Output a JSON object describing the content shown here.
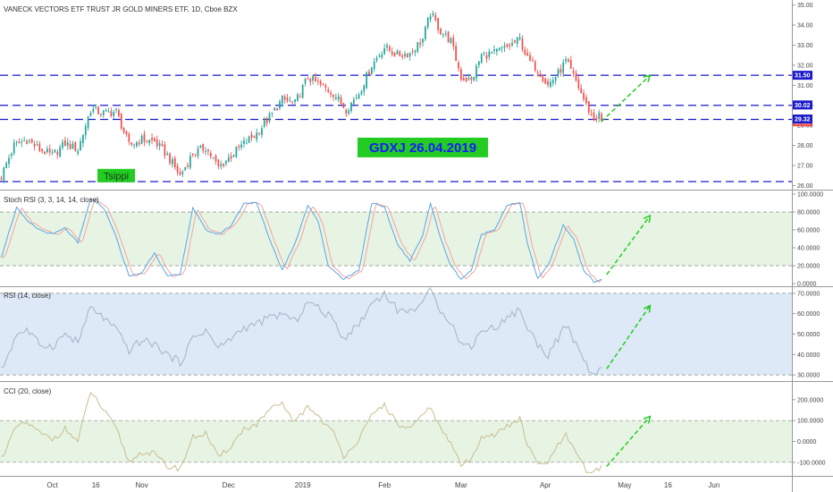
{
  "chart_data": {
    "type": "candlestick",
    "title": "VANECK VECTORS ETF TRUST JR GOLD MINERS ETF, 1D, Cboe BZX",
    "colors": {
      "up": "#26a69a",
      "down": "#ef5350",
      "level_line": "#1a1acc",
      "trend_arrow": "#22cc22",
      "annot_bg": "#22cc22",
      "stoch_k": "#5aa5e6",
      "stoch_d": "#f3a59a",
      "rsi": "#9fb5c8",
      "cci": "#c8bd90",
      "grid_dash": "#888888"
    },
    "time_axis": {
      "labels": [
        {
          "text": "Oct",
          "index": 20
        },
        {
          "text": "16",
          "index": 37
        },
        {
          "text": "Nov",
          "index": 55
        },
        {
          "text": "Dec",
          "index": 89
        },
        {
          "text": "2019",
          "index": 118
        },
        {
          "text": "Feb",
          "index": 150
        },
        {
          "text": "Mar",
          "index": 180
        },
        {
          "text": "Apr",
          "index": 213
        },
        {
          "text": "May",
          "index": 244
        },
        {
          "text": "16",
          "index": 261
        },
        {
          "text": "Jun",
          "index": 279
        }
      ],
      "total_slots": 310
    },
    "price_pane": {
      "y_range": [
        25.8,
        35.25
      ],
      "ticks": [
        "26.00",
        "27.00",
        "28.00",
        "29.00",
        "30.00",
        "31.00",
        "32.00",
        "33.00",
        "34.00",
        "35.00"
      ],
      "horizontal_levels": [
        31.5,
        30.0,
        29.3,
        26.2
      ],
      "price_tags": [
        {
          "text": "31.50",
          "value": 31.5,
          "color": "#1a1acc"
        },
        {
          "text": "30.02",
          "value": 30.02,
          "color": "#1a1acc"
        },
        {
          "text": "29.18",
          "value": 29.18,
          "color": "#ef5350"
        },
        {
          "text": "29.32",
          "value": 29.32,
          "color": "#1a1acc"
        }
      ],
      "anchors": [
        [
          0,
          26.5
        ],
        [
          5,
          28.0
        ],
        [
          10,
          28.3
        ],
        [
          15,
          27.8
        ],
        [
          20,
          27.5
        ],
        [
          25,
          28.1
        ],
        [
          30,
          27.8
        ],
        [
          35,
          29.8
        ],
        [
          40,
          29.6
        ],
        [
          45,
          29.7
        ],
        [
          50,
          28.0
        ],
        [
          55,
          28.3
        ],
        [
          60,
          28.2
        ],
        [
          65,
          27.5
        ],
        [
          70,
          26.5
        ],
        [
          75,
          27.6
        ],
        [
          80,
          27.9
        ],
        [
          85,
          26.9
        ],
        [
          90,
          27.5
        ],
        [
          95,
          28.1
        ],
        [
          100,
          28.6
        ],
        [
          105,
          29.4
        ],
        [
          110,
          30.3
        ],
        [
          115,
          30.1
        ],
        [
          120,
          31.4
        ],
        [
          125,
          31.0
        ],
        [
          130,
          30.6
        ],
        [
          135,
          29.8
        ],
        [
          140,
          30.6
        ],
        [
          145,
          32.0
        ],
        [
          150,
          32.9
        ],
        [
          155,
          32.5
        ],
        [
          160,
          32.6
        ],
        [
          165,
          33.3
        ],
        [
          168,
          34.6
        ],
        [
          172,
          33.7
        ],
        [
          176,
          33.2
        ],
        [
          180,
          31.4
        ],
        [
          184,
          31.2
        ],
        [
          188,
          32.5
        ],
        [
          193,
          32.6
        ],
        [
          198,
          32.9
        ],
        [
          203,
          33.3
        ],
        [
          206,
          32.3
        ],
        [
          210,
          31.8
        ],
        [
          214,
          31.0
        ],
        [
          218,
          31.6
        ],
        [
          221,
          32.2
        ],
        [
          225,
          31.2
        ],
        [
          229,
          30.0
        ],
        [
          232,
          29.3
        ],
        [
          234,
          29.5
        ],
        [
          235,
          29.2
        ]
      ],
      "annotations": [
        {
          "text": "GDXJ 26.04.2019",
          "index": 165,
          "value": 27.9,
          "style": "big"
        },
        {
          "text": "Tsippi",
          "index": 45,
          "value": 26.5,
          "style": "small"
        }
      ],
      "trend_arrow": {
        "from": [
          235,
          29.2
        ],
        "to": [
          254,
          31.5
        ]
      }
    },
    "stoch_pane": {
      "title": "Stoch RSI (3, 3, 14, 14, close)",
      "y_range": [
        -3,
        104
      ],
      "ticks": [
        "0.0000",
        "20.0000",
        "40.0000",
        "60.0000",
        "80.0000",
        "100.0000"
      ],
      "tick_values": [
        0,
        20,
        40,
        60,
        80,
        100
      ],
      "band": [
        20,
        80
      ],
      "anchors": [
        [
          0,
          30
        ],
        [
          6,
          85
        ],
        [
          10,
          70
        ],
        [
          15,
          60
        ],
        [
          20,
          55
        ],
        [
          25,
          62
        ],
        [
          30,
          45
        ],
        [
          35,
          95
        ],
        [
          40,
          85
        ],
        [
          44,
          60
        ],
        [
          50,
          8
        ],
        [
          55,
          12
        ],
        [
          60,
          35
        ],
        [
          65,
          8
        ],
        [
          70,
          10
        ],
        [
          75,
          85
        ],
        [
          80,
          60
        ],
        [
          85,
          55
        ],
        [
          90,
          65
        ],
        [
          95,
          90
        ],
        [
          100,
          90
        ],
        [
          105,
          50
        ],
        [
          110,
          15
        ],
        [
          115,
          45
        ],
        [
          120,
          88
        ],
        [
          124,
          70
        ],
        [
          128,
          20
        ],
        [
          134,
          5
        ],
        [
          140,
          15
        ],
        [
          145,
          90
        ],
        [
          150,
          85
        ],
        [
          155,
          45
        ],
        [
          160,
          25
        ],
        [
          165,
          55
        ],
        [
          168,
          90
        ],
        [
          172,
          50
        ],
        [
          176,
          20
        ],
        [
          180,
          5
        ],
        [
          184,
          15
        ],
        [
          188,
          55
        ],
        [
          193,
          60
        ],
        [
          198,
          88
        ],
        [
          203,
          90
        ],
        [
          206,
          45
        ],
        [
          210,
          5
        ],
        [
          214,
          20
        ],
        [
          220,
          65
        ],
        [
          224,
          50
        ],
        [
          228,
          15
        ],
        [
          232,
          2
        ],
        [
          235,
          5
        ]
      ],
      "arrow": {
        "from": [
          237,
          10
        ],
        "to": [
          254,
          76
        ]
      }
    },
    "rsi_pane": {
      "title": "RSI (14, close)",
      "y_range": [
        27,
        73
      ],
      "ticks": [
        "30.0000",
        "40.0000",
        "50.0000",
        "60.0000",
        "70.0000"
      ],
      "tick_values": [
        30,
        40,
        50,
        60,
        70
      ],
      "band": [
        30,
        70
      ],
      "anchors": [
        [
          0,
          32
        ],
        [
          6,
          50
        ],
        [
          10,
          52
        ],
        [
          15,
          45
        ],
        [
          20,
          44
        ],
        [
          25,
          50
        ],
        [
          30,
          46
        ],
        [
          35,
          63
        ],
        [
          40,
          58
        ],
        [
          45,
          52
        ],
        [
          50,
          42
        ],
        [
          55,
          47
        ],
        [
          60,
          45
        ],
        [
          65,
          40
        ],
        [
          70,
          36
        ],
        [
          75,
          48
        ],
        [
          80,
          52
        ],
        [
          85,
          43
        ],
        [
          90,
          48
        ],
        [
          95,
          53
        ],
        [
          100,
          55
        ],
        [
          105,
          58
        ],
        [
          110,
          60
        ],
        [
          115,
          56
        ],
        [
          120,
          66
        ],
        [
          125,
          62
        ],
        [
          130,
          57
        ],
        [
          134,
          48
        ],
        [
          140,
          55
        ],
        [
          145,
          65
        ],
        [
          150,
          70
        ],
        [
          155,
          62
        ],
        [
          160,
          61
        ],
        [
          165,
          66
        ],
        [
          168,
          71
        ],
        [
          172,
          62
        ],
        [
          176,
          56
        ],
        [
          180,
          45
        ],
        [
          184,
          44
        ],
        [
          188,
          52
        ],
        [
          193,
          53
        ],
        [
          198,
          58
        ],
        [
          203,
          62
        ],
        [
          206,
          53
        ],
        [
          210,
          45
        ],
        [
          214,
          40
        ],
        [
          218,
          48
        ],
        [
          221,
          54
        ],
        [
          225,
          45
        ],
        [
          229,
          35
        ],
        [
          232,
          30
        ],
        [
          235,
          32
        ]
      ],
      "arrow": {
        "from": [
          237,
          33
        ],
        "to": [
          254,
          64
        ]
      }
    },
    "cci_pane": {
      "title": "CCI (20, close)",
      "y_range": [
        -165,
        285
      ],
      "ticks": [
        "-100.0000",
        "0.0000",
        "100.0000",
        "200.0000"
      ],
      "tick_values": [
        -100,
        0,
        100,
        200
      ],
      "band": [
        -100,
        100
      ],
      "anchors": [
        [
          0,
          -80
        ],
        [
          6,
          70
        ],
        [
          10,
          90
        ],
        [
          15,
          40
        ],
        [
          20,
          10
        ],
        [
          25,
          60
        ],
        [
          30,
          0
        ],
        [
          35,
          240
        ],
        [
          40,
          150
        ],
        [
          45,
          60
        ],
        [
          50,
          -100
        ],
        [
          55,
          -50
        ],
        [
          60,
          -60
        ],
        [
          65,
          -120
        ],
        [
          70,
          -130
        ],
        [
          75,
          20
        ],
        [
          80,
          40
        ],
        [
          85,
          -80
        ],
        [
          90,
          -20
        ],
        [
          95,
          60
        ],
        [
          100,
          80
        ],
        [
          105,
          150
        ],
        [
          110,
          180
        ],
        [
          115,
          90
        ],
        [
          120,
          170
        ],
        [
          125,
          110
        ],
        [
          130,
          40
        ],
        [
          134,
          -70
        ],
        [
          140,
          10
        ],
        [
          145,
          120
        ],
        [
          150,
          180
        ],
        [
          155,
          80
        ],
        [
          160,
          60
        ],
        [
          165,
          120
        ],
        [
          168,
          170
        ],
        [
          172,
          60
        ],
        [
          176,
          -10
        ],
        [
          180,
          -110
        ],
        [
          184,
          -90
        ],
        [
          188,
          30
        ],
        [
          193,
          30
        ],
        [
          198,
          70
        ],
        [
          203,
          110
        ],
        [
          206,
          -20
        ],
        [
          210,
          -110
        ],
        [
          214,
          -100
        ],
        [
          218,
          -20
        ],
        [
          221,
          30
        ],
        [
          225,
          -60
        ],
        [
          229,
          -140
        ],
        [
          232,
          -150
        ],
        [
          235,
          -120
        ]
      ],
      "arrow": {
        "from": [
          237,
          -120
        ],
        "to": [
          254,
          120
        ]
      }
    }
  }
}
